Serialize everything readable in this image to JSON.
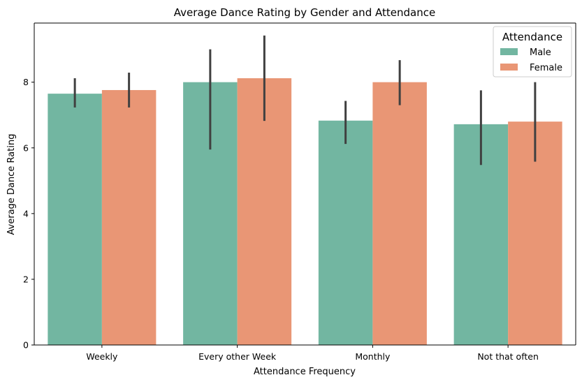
{
  "chart_data": {
    "type": "bar",
    "title": "Average Dance Rating by Gender and Attendance",
    "xlabel": "Attendance Frequency",
    "ylabel": "Average Dance Rating",
    "categories": [
      "Weekly",
      "Every other Week",
      "Monthly",
      "Not that often"
    ],
    "ylim": [
      0,
      9.8
    ],
    "yticks": [
      0,
      2,
      4,
      6,
      8
    ],
    "grid": false,
    "legend": {
      "title": "Attendance",
      "placement": "top-right"
    },
    "series": [
      {
        "name": "Male",
        "color": "#72b6a1",
        "values": [
          7.65,
          8.0,
          6.83,
          6.72
        ],
        "error_low": [
          7.23,
          5.95,
          6.12,
          5.48
        ],
        "error_high": [
          8.12,
          9.0,
          7.43,
          7.75
        ]
      },
      {
        "name": "Female",
        "color": "#e99675",
        "values": [
          7.76,
          8.12,
          8.0,
          6.8
        ],
        "error_low": [
          7.23,
          6.82,
          7.3,
          5.58
        ],
        "error_high": [
          8.29,
          9.42,
          8.67,
          8.0
        ]
      }
    ],
    "error_bar_color": "#404040"
  }
}
